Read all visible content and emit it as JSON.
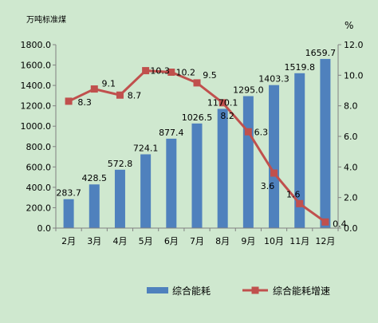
{
  "chart_data": {
    "type": "bar",
    "left_unit": "万吨标准煤",
    "right_unit": "%",
    "categories": [
      "2月",
      "3月",
      "4月",
      "5月",
      "6月",
      "7月",
      "8月",
      "9月",
      "10月",
      "11月",
      "12月"
    ],
    "series": [
      {
        "name": "综合能耗",
        "type": "bar",
        "axis": "left",
        "color": "#4f81bd",
        "values": [
          283.7,
          428.5,
          572.8,
          724.1,
          877.4,
          1026.5,
          1170.1,
          1295.0,
          1403.3,
          1519.8,
          1659.7
        ],
        "labels": [
          "283.7",
          "428.5",
          "572.8",
          "724.1",
          "877.4",
          "1026.5",
          "1170.1",
          "1295.0",
          "1403.3",
          "1519.8",
          "1659.7"
        ]
      },
      {
        "name": "综合能耗增速",
        "type": "line",
        "axis": "right",
        "color": "#c0504d",
        "values": [
          8.3,
          9.1,
          8.7,
          10.3,
          10.2,
          9.5,
          8.2,
          6.3,
          3.6,
          1.6,
          0.4
        ],
        "labels": [
          "8.3",
          "9.1",
          "8.7",
          "10.3",
          "10.2",
          "9.5",
          "8.2",
          "6.3",
          "3.6",
          "1.6",
          "0.4"
        ]
      }
    ],
    "y_left": {
      "min": 0,
      "max": 1800,
      "step": 200,
      "tick_labels": [
        "0.0",
        "200.0",
        "400.0",
        "600.0",
        "800.0",
        "1000.0",
        "1200.0",
        "1400.0",
        "1600.0",
        "1800.0"
      ]
    },
    "y_right": {
      "min": 0,
      "max": 12,
      "step": 2,
      "tick_labels": [
        "0.0",
        "2.0",
        "4.0",
        "6.0",
        "8.0",
        "10.0",
        "12.0"
      ]
    },
    "grid": false,
    "legend_position": "bottom"
  }
}
